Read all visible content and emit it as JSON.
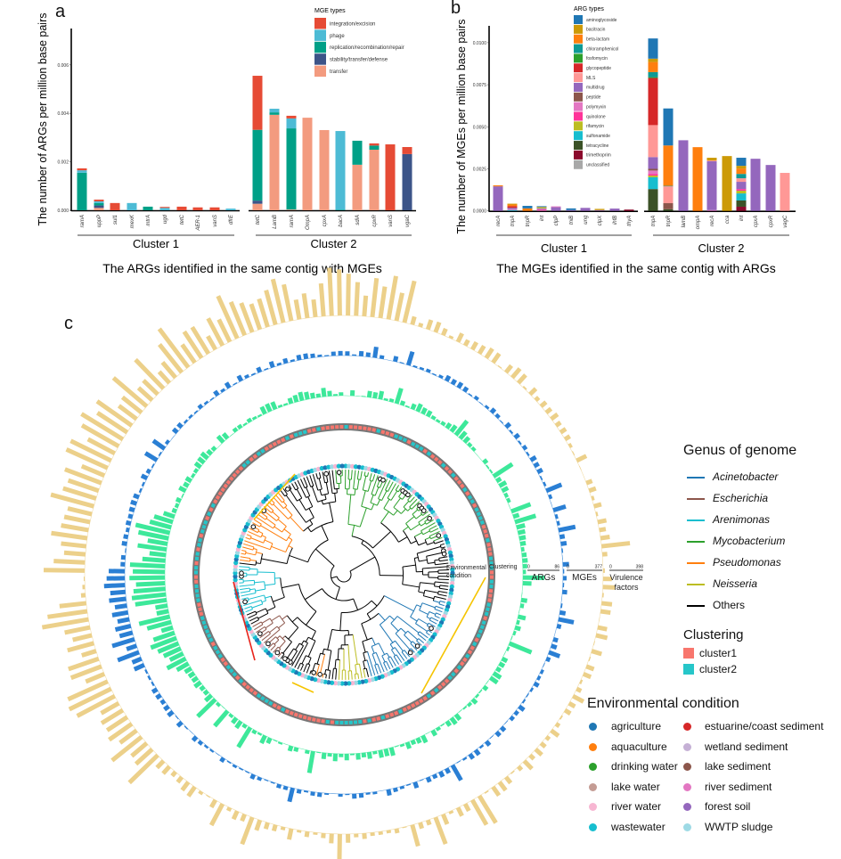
{
  "panels": {
    "a": "a",
    "b": "b",
    "c": "c"
  },
  "chart_data": [
    {
      "type": "bar",
      "stacked": true,
      "panel": "a",
      "title": "The ARGs identified in the same contig with MGEs",
      "xlabel": "",
      "ylabel": "The number of ARGs per million base pairs",
      "ylim": [
        0,
        0.0075
      ],
      "yticks": [
        "0.000",
        "0.002",
        "0.004",
        "0.006"
      ],
      "ytick_values": [
        0,
        0.002,
        0.004,
        0.006
      ],
      "legend_title": "MGE types",
      "legend_position": "top-right",
      "legend": [
        {
          "name": "integration/excision",
          "color": "#e64b35"
        },
        {
          "name": "phage",
          "color": "#4dbbd5"
        },
        {
          "name": "replication/recombination/repair",
          "color": "#00a087"
        },
        {
          "name": "stability/transfer/defense",
          "color": "#3c5488"
        },
        {
          "name": "transfer",
          "color": "#f39b7f"
        }
      ],
      "groups": [
        "Cluster 1",
        "Cluster 2"
      ],
      "bars": [
        {
          "label": "ramA",
          "group": 0,
          "segments": [
            [
              "replication/recombination/repair",
              0.00155
            ],
            [
              "phage",
              0.0001
            ],
            [
              "integration/excision",
              8e-05
            ]
          ]
        },
        {
          "label": "uppP",
          "group": 0,
          "segments": [
            [
              "transfer",
              0.0001
            ],
            [
              "stability/transfer/defense",
              0.0001
            ],
            [
              "replication/recombination/repair",
              0.0001
            ],
            [
              "phage",
              7e-05
            ],
            [
              "integration/excision",
              7e-05
            ]
          ]
        },
        {
          "label": "sul1",
          "group": 0,
          "segments": [
            [
              "integration/excision",
              0.0003
            ]
          ]
        },
        {
          "label": "mexK",
          "group": 0,
          "segments": [
            [
              "phage",
              0.0003
            ]
          ]
        },
        {
          "label": "mtrA",
          "group": 0,
          "segments": [
            [
              "replication/recombination/repair",
              0.00015
            ]
          ]
        },
        {
          "label": "ugd",
          "group": 0,
          "segments": [
            [
              "phage",
              0.0001
            ],
            [
              "integration/excision",
              4e-05
            ]
          ]
        },
        {
          "label": "tetC",
          "group": 0,
          "segments": [
            [
              "integration/excision",
              0.00015
            ]
          ]
        },
        {
          "label": "AER-1",
          "group": 0,
          "segments": [
            [
              "integration/excision",
              0.00012
            ]
          ]
        },
        {
          "label": "vanS",
          "group": 0,
          "segments": [
            [
              "integration/excision",
              0.00012
            ]
          ]
        },
        {
          "label": "dfrE",
          "group": 0,
          "segments": [
            [
              "phage",
              7e-05
            ]
          ]
        },
        {
          "label": "tetC",
          "group": 1,
          "segments": [
            [
              "transfer",
              0.00027
            ],
            [
              "stability/transfer/defense",
              0.00013
            ],
            [
              "replication/recombination/repair",
              0.00292
            ],
            [
              "integration/excision",
              0.00223
            ]
          ]
        },
        {
          "label": "LamB",
          "group": 1,
          "segments": [
            [
              "transfer",
              0.00394
            ],
            [
              "replication/recombination/repair",
              0.0001
            ],
            [
              "phage",
              0.00015
            ]
          ]
        },
        {
          "label": "ramA",
          "group": 1,
          "segments": [
            [
              "transfer",
              3e-05
            ],
            [
              "replication/recombination/repair",
              0.00335
            ],
            [
              "phage",
              0.00041
            ],
            [
              "integration/excision",
              0.00011
            ]
          ]
        },
        {
          "label": "OmpA",
          "group": 1,
          "segments": [
            [
              "transfer",
              0.00382
            ]
          ]
        },
        {
          "label": "cpxA",
          "group": 1,
          "segments": [
            [
              "transfer",
              0.00331
            ]
          ]
        },
        {
          "label": "bacA",
          "group": 1,
          "segments": [
            [
              "replication/recombination/repair",
              2e-05
            ],
            [
              "phage",
              0.00325
            ]
          ]
        },
        {
          "label": "sdiA",
          "group": 1,
          "segments": [
            [
              "transfer",
              0.00188
            ],
            [
              "replication/recombination/repair",
              0.00099
            ]
          ]
        },
        {
          "label": "cpxR",
          "group": 1,
          "segments": [
            [
              "transfer",
              0.0025
            ],
            [
              "replication/recombination/repair",
              0.00017
            ],
            [
              "integration/excision",
              9e-05
            ]
          ]
        },
        {
          "label": "vanS",
          "group": 1,
          "segments": [
            [
              "integration/excision",
              0.00272
            ]
          ]
        },
        {
          "label": "vgaC",
          "group": 1,
          "segments": [
            [
              "stability/transfer/defense",
              0.00232
            ],
            [
              "integration/excision",
              0.00029
            ]
          ]
        }
      ]
    },
    {
      "type": "bar",
      "stacked": true,
      "panel": "b",
      "title": "The MGEs identified in the same contig with ARGs",
      "xlabel": "",
      "ylabel": "The number of MGEs per million base pairs",
      "ylim": [
        0,
        0.011
      ],
      "yticks": [
        "0.0000",
        "0.0025",
        "0.0050",
        "0.0075",
        "0.0100"
      ],
      "ytick_values": [
        0,
        0.0025,
        0.005,
        0.0075,
        0.01
      ],
      "legend_title": "ARG types",
      "legend_position": "top-center",
      "legend": [
        {
          "name": "aminoglycoside",
          "color": "#1f77b4"
        },
        {
          "name": "bacitracin",
          "color": "#cc9a06"
        },
        {
          "name": "beta-lactam",
          "color": "#ff7f0e"
        },
        {
          "name": "chloramphenicol",
          "color": "#0e9a94"
        },
        {
          "name": "fosfomycin",
          "color": "#2ca02c"
        },
        {
          "name": "glycopeptide",
          "color": "#d62728"
        },
        {
          "name": "MLS",
          "color": "#ff9896"
        },
        {
          "name": "multidrug",
          "color": "#9467bd"
        },
        {
          "name": "peptide",
          "color": "#8c564b"
        },
        {
          "name": "polymyxin",
          "color": "#e377c2"
        },
        {
          "name": "quinolone",
          "color": "#ff3399"
        },
        {
          "name": "rifamycin",
          "color": "#bcbd22"
        },
        {
          "name": "sulfonamide",
          "color": "#17becf"
        },
        {
          "name": "tetracycline",
          "color": "#3b5227"
        },
        {
          "name": "trimethoprim",
          "color": "#8b0a2c"
        },
        {
          "name": "unclassified",
          "color": "#a8a8a8"
        }
      ],
      "groups": [
        "Cluster 1",
        "Cluster 2"
      ],
      "bars": [
        {
          "label": "recA",
          "group": 0,
          "segments": [
            [
              "multidrug",
              0.00146
            ],
            [
              "beta-lactam",
              6e-05
            ]
          ]
        },
        {
          "label": "tnpA",
          "group": 0,
          "segments": [
            [
              "sulfonamide",
              5e-05
            ],
            [
              "polymyxin",
              5e-05
            ],
            [
              "multidrug",
              8e-05
            ],
            [
              "glycopeptide",
              0.0001
            ],
            [
              "beta-lactam",
              0.0001
            ],
            [
              "bacitracin",
              5e-05
            ]
          ]
        },
        {
          "label": "tnpR",
          "group": 0,
          "segments": [
            [
              "beta-lactam",
              0.00015
            ],
            [
              "aminoglycoside",
              0.00015
            ]
          ]
        },
        {
          "label": "int",
          "group": 0,
          "segments": [
            [
              "polymyxin",
              5e-05
            ],
            [
              "quinolone",
              5e-05
            ],
            [
              "multidrug",
              5e-05
            ],
            [
              "rifamycin",
              4e-05
            ],
            [
              "bacitracin",
              4e-05
            ],
            [
              "aminoglycoside",
              5e-05
            ]
          ]
        },
        {
          "label": "clpP",
          "group": 0,
          "segments": [
            [
              "multidrug",
              0.00022
            ],
            [
              "polymyxin",
              5e-05
            ]
          ]
        },
        {
          "label": "tniB",
          "group": 0,
          "segments": [
            [
              "multidrug",
              5e-05
            ],
            [
              "aminoglycoside",
              0.0001
            ]
          ]
        },
        {
          "label": "ung",
          "group": 0,
          "segments": [
            [
              "multidrug",
              0.00018
            ]
          ]
        },
        {
          "label": "clpX",
          "group": 0,
          "segments": [
            [
              "multidrug",
              5e-05
            ],
            [
              "bacitracin",
              7e-05
            ]
          ]
        },
        {
          "label": "ihfB",
          "group": 0,
          "segments": [
            [
              "multidrug",
              0.00014
            ]
          ]
        },
        {
          "label": "thyA",
          "group": 0,
          "segments": [
            [
              "trimethoprim",
              8e-05
            ]
          ]
        },
        {
          "label": "tnpA",
          "group": 1,
          "segments": [
            [
              "tetracycline",
              0.0013
            ],
            [
              "sulfonamide",
              0.0007
            ],
            [
              "rifamycin",
              0.0001
            ],
            [
              "quinolone",
              0.0001
            ],
            [
              "polymyxin",
              0.0002
            ],
            [
              "peptide",
              0.0001
            ],
            [
              "multidrug",
              0.0007
            ],
            [
              "MLS",
              0.0019
            ],
            [
              "glycopeptide",
              0.0028
            ],
            [
              "fosfomycin",
              5e-05
            ],
            [
              "chloramphenicol",
              0.0003
            ],
            [
              "beta-lactam",
              0.0006
            ],
            [
              "bacitracin",
              0.0002
            ],
            [
              "aminoglycoside",
              0.0012
            ]
          ]
        },
        {
          "label": "tnpR",
          "group": 1,
          "segments": [
            [
              "tetracycline",
              0.0001
            ],
            [
              "peptide",
              0.00036
            ],
            [
              "MLS",
              0.001
            ],
            [
              "chloramphenicol",
              3e-05
            ],
            [
              "beta-lactam",
              0.0024
            ],
            [
              "aminoglycoside",
              0.0022
            ]
          ]
        },
        {
          "label": "lamB",
          "group": 1,
          "segments": [
            [
              "multidrug",
              0.0042
            ]
          ]
        },
        {
          "label": "ompA",
          "group": 1,
          "segments": [
            [
              "beta-lactam",
              0.00379
            ]
          ]
        },
        {
          "label": "recA",
          "group": 1,
          "segments": [
            [
              "polymyxin",
              5e-05
            ],
            [
              "multidrug",
              0.0029
            ],
            [
              "MLS",
              5e-05
            ],
            [
              "bacitracin",
              0.00016
            ]
          ]
        },
        {
          "label": "cca",
          "group": 1,
          "segments": [
            [
              "bacitracin",
              0.00326
            ]
          ]
        },
        {
          "label": "int",
          "group": 1,
          "segments": [
            [
              "trimethoprim",
              0.00025
            ],
            [
              "tetracycline",
              0.00037
            ],
            [
              "sulfonamide",
              0.00042
            ],
            [
              "rifamycin",
              0.00016
            ],
            [
              "quinolone",
              0.0001
            ],
            [
              "multidrug",
              0.00043
            ],
            [
              "MLS",
              0.00021
            ],
            [
              "chloramphenicol",
              0.00026
            ],
            [
              "beta-lactam",
              0.00032
            ],
            [
              "bacitracin",
              0.00016
            ],
            [
              "aminoglycoside",
              0.00048
            ]
          ]
        },
        {
          "label": "cpxA",
          "group": 1,
          "segments": [
            [
              "multidrug",
              0.0031
            ]
          ]
        },
        {
          "label": "cpxR",
          "group": 1,
          "segments": [
            [
              "multidrug",
              0.00273
            ]
          ]
        },
        {
          "label": "vagC",
          "group": 1,
          "segments": [
            [
              "MLS",
              0.00226
            ]
          ]
        }
      ]
    }
  ],
  "tree": {
    "labels": {
      "environmental_condition": [
        "Environmental",
        "condition"
      ],
      "clustering": "Clustering",
      "args": "ARGs",
      "mges": "MGEs",
      "virulence": [
        "Virulence",
        "factors"
      ]
    },
    "scales": {
      "args": {
        "min": "0",
        "max": "86"
      },
      "mges": {
        "min": "0",
        "max": "377"
      },
      "virulence": {
        "min": "0",
        "max": "398"
      }
    },
    "ring_colors": {
      "args": "#3de89a",
      "mges": "#2a7fd4",
      "virulence": "#ecd08a"
    }
  },
  "legends": {
    "genus": {
      "title": "Genus of genome",
      "items": [
        {
          "name": "Acinetobacter",
          "color": "#1f77b4"
        },
        {
          "name": "Escherichia",
          "color": "#8c564b"
        },
        {
          "name": "Arenimonas",
          "color": "#17becf"
        },
        {
          "name": "Mycobacterium",
          "color": "#2ca02c"
        },
        {
          "name": "Pseudomonas",
          "color": "#ff7f0e"
        },
        {
          "name": "Neisseria",
          "color": "#bcbd22"
        },
        {
          "name": "Others",
          "color": "#000000"
        }
      ]
    },
    "clustering": {
      "title": "Clustering",
      "items": [
        {
          "name": "cluster1",
          "color": "#f8766d"
        },
        {
          "name": "cluster2",
          "color": "#26c6c9"
        }
      ]
    },
    "environment": {
      "title": "Environmental condition",
      "items": [
        {
          "name": "agriculture",
          "color": "#1f77b4"
        },
        {
          "name": "aquaculture",
          "color": "#ff7f0e"
        },
        {
          "name": "drinking water",
          "color": "#2ca02c"
        },
        {
          "name": "lake water",
          "color": "#c49c94"
        },
        {
          "name": "river water",
          "color": "#f7b6d2"
        },
        {
          "name": "wastewater",
          "color": "#17becf"
        },
        {
          "name": "estuarine/coast sediment",
          "color": "#d62728"
        },
        {
          "name": "wetland sediment",
          "color": "#c5b0d5"
        },
        {
          "name": "lake sediment",
          "color": "#8c564b"
        },
        {
          "name": "river sediment",
          "color": "#e377c2"
        },
        {
          "name": "forest soil",
          "color": "#9467bd"
        },
        {
          "name": "WWTP sludge",
          "color": "#9edae5"
        }
      ]
    }
  }
}
